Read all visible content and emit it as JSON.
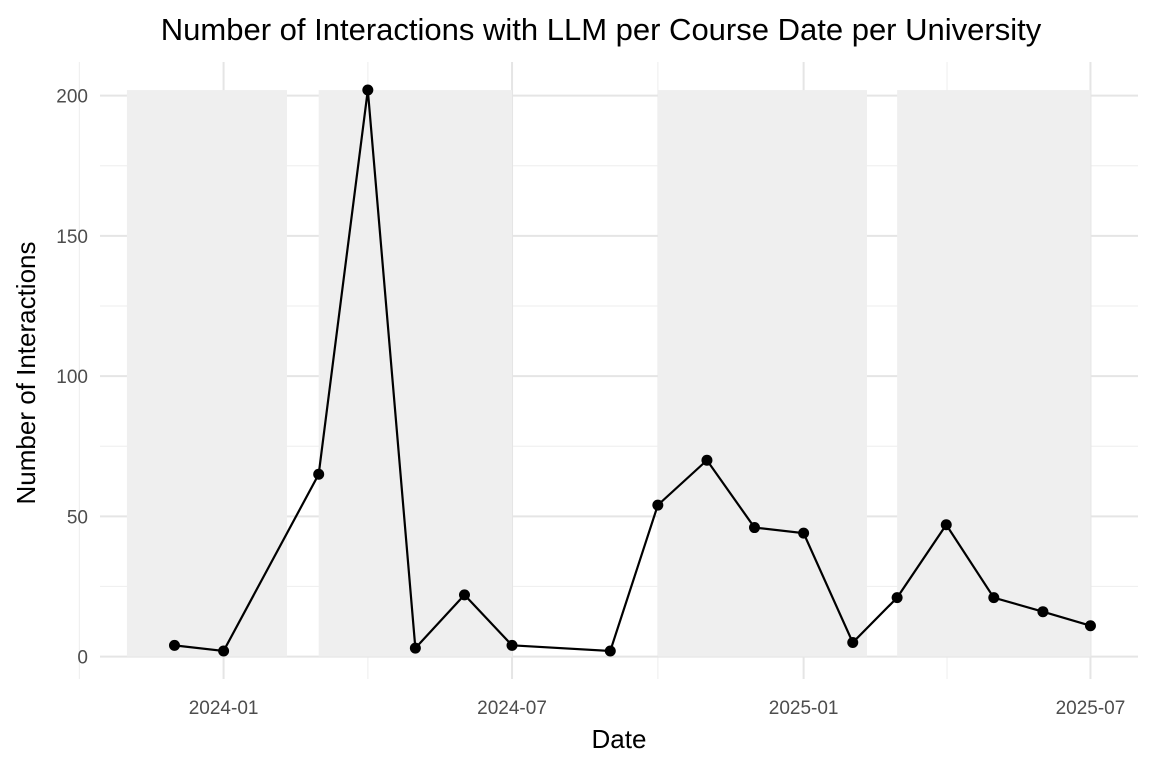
{
  "chart_data": {
    "type": "line",
    "title": "Number of Interactions with LLM per Course Date per University",
    "xlabel": "Date",
    "ylabel": "Number of Interactions",
    "x_type": "date",
    "xlim": [
      "2023-10-15",
      "2025-07-31"
    ],
    "ylim": [
      -8,
      212
    ],
    "x_ticks": [
      {
        "value": "2024-01-01",
        "label": "2024-01"
      },
      {
        "value": "2024-07-01",
        "label": "2024-07"
      },
      {
        "value": "2025-01-01",
        "label": "2025-01"
      },
      {
        "value": "2025-07-01",
        "label": "2025-07"
      }
    ],
    "y_ticks": [
      0,
      50,
      100,
      150,
      200
    ],
    "grid": true,
    "legend": "none",
    "line_color": "#000000",
    "band_color": "#efefef",
    "shaded_periods": [
      {
        "start": "2023-11-01",
        "end": "2024-02-10",
        "top": 202
      },
      {
        "start": "2024-03-01",
        "end": "2024-07-01",
        "top": 202
      },
      {
        "start": "2024-10-01",
        "end": "2025-02-10",
        "top": 202
      },
      {
        "start": "2025-03-01",
        "end": "2025-07-01",
        "top": 202
      }
    ],
    "series": [
      {
        "points": [
          {
            "x": "2023-12-01",
            "y": 4
          },
          {
            "x": "2024-01-01",
            "y": 2
          },
          {
            "x": "2024-03-01",
            "y": 65
          },
          {
            "x": "2024-04-01",
            "y": 202
          },
          {
            "x": "2024-05-01",
            "y": 3
          },
          {
            "x": "2024-06-01",
            "y": 22
          },
          {
            "x": "2024-07-01",
            "y": 4
          },
          {
            "x": "2024-09-01",
            "y": 2
          },
          {
            "x": "2024-10-01",
            "y": 54
          },
          {
            "x": "2024-11-01",
            "y": 70
          },
          {
            "x": "2024-12-01",
            "y": 46
          },
          {
            "x": "2025-01-01",
            "y": 44
          },
          {
            "x": "2025-02-01",
            "y": 5
          },
          {
            "x": "2025-03-01",
            "y": 21
          },
          {
            "x": "2025-04-01",
            "y": 47
          },
          {
            "x": "2025-05-01",
            "y": 21
          },
          {
            "x": "2025-06-01",
            "y": 16
          },
          {
            "x": "2025-07-01",
            "y": 11
          }
        ]
      }
    ]
  }
}
